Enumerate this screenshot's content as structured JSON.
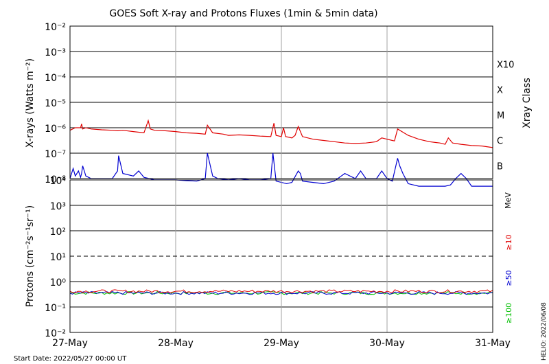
{
  "chart_data": {
    "type": "line",
    "title": "GOES Soft X-ray and Protons Fluxes   (1min & 5min data)",
    "x_ticks": [
      "27-May",
      "28-May",
      "29-May",
      "30-May",
      "31-May"
    ],
    "x_range": [
      "2022-05-27 00:00",
      "2022-05-31 00:00"
    ],
    "start_date_label": "Start Date: 2022/05/27 00:00 UT",
    "side_label": "HELIO: 2022/06/08",
    "colors": {
      "long": "#e00000",
      "short": "#0000d0",
      "p10": "#e00000",
      "p50": "#0000d0",
      "p100": "#00c000",
      "grid_day": "#a0a0a0"
    },
    "xray_panel": {
      "ylabel": "X-rays (Watts m⁻²)",
      "yscale": "log",
      "ylim_exponents": [
        -8,
        -2
      ],
      "tick_labels": [
        "10⁻⁸",
        "10⁻⁷",
        "10⁻⁶",
        "10⁻⁵",
        "10⁻⁴",
        "10⁻³",
        "10⁻²"
      ],
      "class_axis_label": "Xray Class",
      "classes": [
        "B",
        "C",
        "M",
        "X",
        "X10"
      ],
      "series": [
        {
          "name": "long",
          "x_days": [
            0,
            0.05,
            0.1,
            0.11,
            0.12,
            0.15,
            0.2,
            0.3,
            0.4,
            0.45,
            0.5,
            0.6,
            0.7,
            0.74,
            0.76,
            0.8,
            0.9,
            1.0,
            1.1,
            1.2,
            1.28,
            1.3,
            1.35,
            1.45,
            1.5,
            1.6,
            1.7,
            1.8,
            1.9,
            1.93,
            1.95,
            2.0,
            2.02,
            2.04,
            2.1,
            2.13,
            2.16,
            2.2,
            2.3,
            2.4,
            2.5,
            2.6,
            2.7,
            2.8,
            2.9,
            2.95,
            3.0,
            3.05,
            3.07,
            3.1,
            3.2,
            3.3,
            3.4,
            3.5,
            3.55,
            3.58,
            3.62,
            3.7,
            3.8,
            3.9,
            4.0
          ],
          "y_exp": [
            -6.1,
            -6.0,
            -6.0,
            -5.85,
            -6.05,
            -6.0,
            -6.05,
            -6.08,
            -6.1,
            -6.12,
            -6.1,
            -6.15,
            -6.2,
            -5.72,
            -6.05,
            -6.1,
            -6.12,
            -6.15,
            -6.2,
            -6.22,
            -6.25,
            -5.9,
            -6.2,
            -6.25,
            -6.3,
            -6.28,
            -6.3,
            -6.33,
            -6.35,
            -5.82,
            -6.3,
            -6.35,
            -6.0,
            -6.35,
            -6.4,
            -6.3,
            -5.95,
            -6.35,
            -6.45,
            -6.5,
            -6.55,
            -6.6,
            -6.62,
            -6.6,
            -6.55,
            -6.4,
            -6.45,
            -6.5,
            -6.52,
            -6.05,
            -6.3,
            -6.45,
            -6.55,
            -6.6,
            -6.65,
            -6.4,
            -6.6,
            -6.65,
            -6.7,
            -6.72,
            -6.78
          ]
        },
        {
          "name": "short",
          "x_days": [
            0,
            0.03,
            0.05,
            0.08,
            0.1,
            0.11,
            0.12,
            0.15,
            0.2,
            0.3,
            0.4,
            0.45,
            0.46,
            0.5,
            0.6,
            0.65,
            0.7,
            0.75,
            0.8,
            0.9,
            1.0,
            1.1,
            1.2,
            1.28,
            1.3,
            1.35,
            1.4,
            1.5,
            1.6,
            1.7,
            1.8,
            1.9,
            1.92,
            1.95,
            2.0,
            2.05,
            2.1,
            2.16,
            2.18,
            2.2,
            2.3,
            2.4,
            2.5,
            2.6,
            2.7,
            2.75,
            2.8,
            2.9,
            2.95,
            3.0,
            3.05,
            3.1,
            3.12,
            3.15,
            3.2,
            3.3,
            3.4,
            3.5,
            3.55,
            3.6,
            3.65,
            3.7,
            3.75,
            3.8,
            3.9,
            4.0
          ],
          "y_exp": [
            -8.0,
            -7.6,
            -7.9,
            -7.7,
            -7.95,
            -7.8,
            -7.5,
            -7.9,
            -8.0,
            -8.0,
            -8.0,
            -7.7,
            -7.1,
            -7.8,
            -7.9,
            -7.7,
            -7.95,
            -8.0,
            -8.05,
            -8.05,
            -8.05,
            -8.08,
            -8.1,
            -8.0,
            -7.0,
            -7.9,
            -8.0,
            -8.05,
            -8.0,
            -8.05,
            -8.05,
            -8.0,
            -7.0,
            -8.1,
            -8.15,
            -8.2,
            -8.15,
            -7.7,
            -7.8,
            -8.1,
            -8.15,
            -8.2,
            -8.1,
            -7.8,
            -8.0,
            -7.7,
            -8.0,
            -8.0,
            -7.7,
            -8.0,
            -8.1,
            -7.2,
            -7.5,
            -7.8,
            -8.2,
            -8.3,
            -8.3,
            -8.3,
            -8.3,
            -8.25,
            -8.0,
            -7.8,
            -8.0,
            -8.3,
            -8.3,
            -8.3
          ]
        }
      ]
    },
    "proton_panel": {
      "ylabel": "Protons (cm⁻²s⁻¹sr⁻¹)",
      "yscale": "log",
      "ylim_exponents": [
        -2,
        4
      ],
      "tick_labels": [
        "10⁻²",
        "10⁻¹",
        "10⁰",
        "10¹",
        "10²",
        "10³",
        "10⁴"
      ],
      "threshold_exponent": 1,
      "energy_unit": "MeV",
      "series": [
        {
          "name": "≥10",
          "color_key": "p10",
          "mean_exp": -0.38
        },
        {
          "name": "≥50",
          "color_key": "p50",
          "mean_exp": -0.45
        },
        {
          "name": "≥100",
          "color_key": "p100",
          "mean_exp": -0.45
        }
      ]
    }
  }
}
